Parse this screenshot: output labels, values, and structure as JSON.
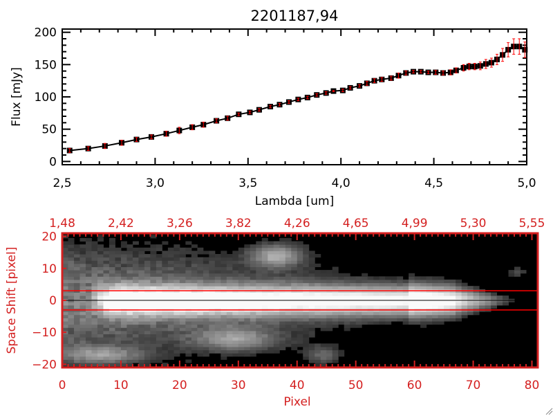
{
  "chart_data": [
    {
      "type": "line",
      "title": "2201187,94",
      "xlabel": "Lambda [um]",
      "ylabel": "Flux [mJy]",
      "xlim": [
        2.5,
        5.0
      ],
      "ylim": [
        -5,
        205
      ],
      "xticks": [
        "2,5",
        "3,0",
        "3,5",
        "4,0",
        "4,5",
        "5,0"
      ],
      "xtick_values": [
        2.5,
        3.0,
        3.5,
        4.0,
        4.5,
        5.0
      ],
      "yticks": [
        "0",
        "50",
        "100",
        "150",
        "200"
      ],
      "ytick_values": [
        0,
        50,
        100,
        150,
        200
      ],
      "line_color": "#000000",
      "marker": "square",
      "error_color": "#ff0000",
      "grid": false,
      "series": [
        {
          "x": [
            2.54,
            2.64,
            2.73,
            2.82,
            2.9,
            2.98,
            3.06,
            3.13,
            3.2,
            3.26,
            3.33,
            3.39,
            3.45,
            3.51,
            3.56,
            3.62,
            3.67,
            3.72,
            3.77,
            3.82,
            3.87,
            3.92,
            3.96,
            4.01,
            4.05,
            4.1,
            4.14,
            4.18,
            4.22,
            4.27,
            4.31,
            4.35,
            4.39,
            4.43,
            4.47,
            4.51,
            4.55,
            4.59,
            4.62,
            4.66,
            4.69,
            4.72,
            4.75,
            4.78,
            4.81,
            4.84,
            4.87,
            4.9,
            4.93,
            4.96,
            4.99
          ],
          "y": [
            17,
            20,
            24,
            29,
            34,
            38,
            43,
            48,
            53,
            57,
            63,
            67,
            73,
            76,
            80,
            85,
            88,
            92,
            96,
            99,
            103,
            106,
            109,
            110,
            114,
            117,
            121,
            125,
            127,
            129,
            133,
            137,
            139,
            139,
            138,
            138,
            137,
            138,
            141,
            145,
            147,
            147,
            148,
            151,
            153,
            158,
            165,
            173,
            178,
            178,
            173
          ],
          "err": [
            3,
            3,
            4,
            4,
            3,
            3,
            4,
            5,
            4,
            4,
            3,
            3,
            2,
            2,
            2,
            2,
            2,
            2,
            2,
            2,
            2,
            2,
            1,
            2,
            2,
            2,
            3,
            3,
            3,
            3,
            4,
            3,
            2,
            2,
            2,
            3,
            3,
            4,
            4,
            5,
            5,
            5,
            6,
            7,
            7,
            8,
            10,
            11,
            12,
            12,
            12
          ]
        }
      ]
    },
    {
      "type": "heatmap",
      "xlabel": "Pixel",
      "ylabel": "Space Shift [pixel]",
      "xlim": [
        0,
        81
      ],
      "ylim": [
        -21,
        21
      ],
      "xticks": [
        "0",
        "10",
        "20",
        "30",
        "40",
        "50",
        "60",
        "70",
        "80"
      ],
      "xtick_values": [
        0,
        10,
        20,
        30,
        40,
        50,
        60,
        70,
        80
      ],
      "top_xticks": [
        "1,48",
        "2,42",
        "3,26",
        "3,82",
        "4,26",
        "4,65",
        "4,99",
        "5,30",
        "5,55"
      ],
      "yticks": [
        "20",
        "10",
        "0",
        "−10",
        "−20"
      ],
      "ytick_values": [
        20,
        10,
        0,
        -10,
        -20
      ],
      "colormap": "grayscale",
      "axis_color": "#d42020",
      "aperture_lines": [
        3,
        -3
      ],
      "aperture_color": "#ff0000",
      "center_line": 0,
      "center_color": "#000000"
    }
  ]
}
